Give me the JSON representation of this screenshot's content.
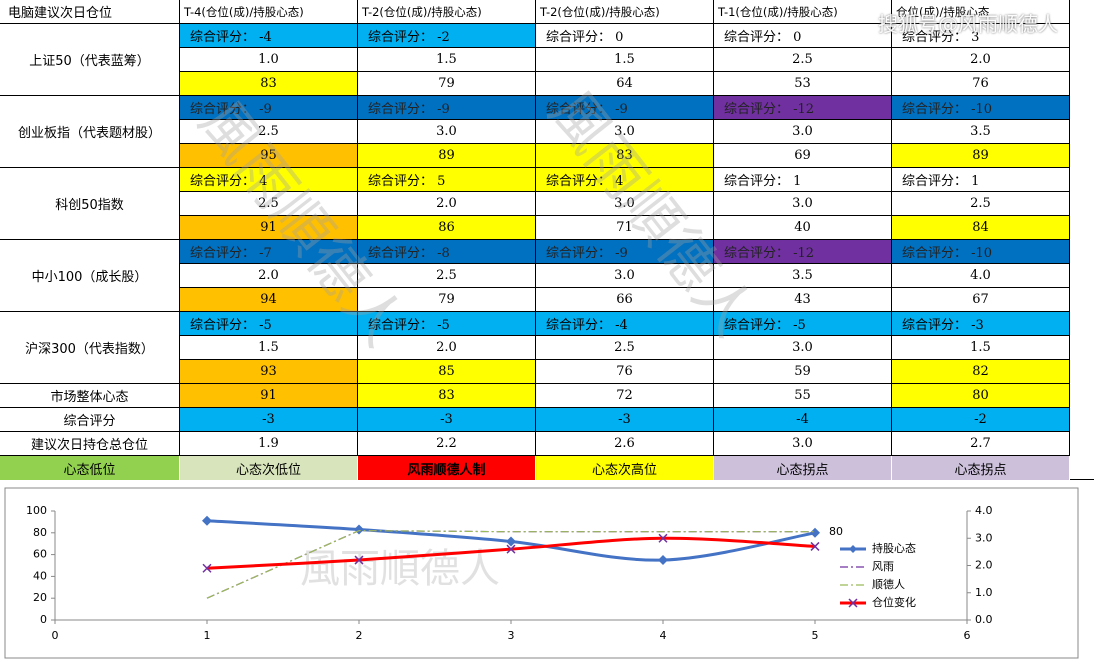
{
  "table": {
    "header": [
      "电脑建议次日仓位",
      "T-4(仓位(成)/持股心态)",
      "T-2(仓位(成)/持股心态)",
      "T-2(仓位(成)/持股心态)",
      "T-1(仓位(成)/持股心态)",
      "仓位(成)/持股心态"
    ],
    "groups": [
      {
        "label": "上证50（代表蓝筹）",
        "scores": [
          "综合评分： -4",
          "综合评分： -2",
          "综合评分： 0",
          "综合评分： 0",
          "综合评分： 3"
        ],
        "positions": [
          "1.0",
          "1.5",
          "1.5",
          "2.5",
          "2.0"
        ],
        "moods": [
          83,
          79,
          64,
          53,
          76
        ]
      },
      {
        "label": "创业板指（代表题材股）",
        "scores": [
          "综合评分： -9",
          "综合评分： -9",
          "综合评分： -9",
          "综合评分： -12",
          "综合评分： -10"
        ],
        "positions": [
          "2.5",
          "3.0",
          "3.0",
          "3.0",
          "3.5"
        ],
        "moods": [
          95,
          89,
          83,
          69,
          89
        ]
      },
      {
        "label": "科创50指数",
        "scores": [
          "综合评分： 4",
          "综合评分： 5",
          "综合评分： 4",
          "综合评分： 1",
          "综合评分： 1"
        ],
        "positions": [
          "2.5",
          "2.0",
          "3.0",
          "3.0",
          "2.5"
        ],
        "moods": [
          91,
          86,
          71,
          40,
          84
        ]
      },
      {
        "label": "中小100（成长股）",
        "scores": [
          "综合评分： -7",
          "综合评分： -8",
          "综合评分： -9",
          "综合评分： -12",
          "综合评分： -10"
        ],
        "positions": [
          "2.0",
          "2.5",
          "3.0",
          "3.5",
          "4.0"
        ],
        "moods": [
          94,
          79,
          66,
          43,
          67
        ]
      },
      {
        "label": "沪深300（代表指数）",
        "scores": [
          "综合评分： -5",
          "综合评分： -5",
          "综合评分： -4",
          "综合评分： -5",
          "综合评分： -3"
        ],
        "positions": [
          "1.5",
          "2.0",
          "2.5",
          "3.0",
          "1.5"
        ],
        "moods": [
          93,
          85,
          76,
          59,
          82
        ]
      }
    ],
    "rows": [
      {
        "label": "市场整体心态",
        "cells": [
          91,
          83,
          72,
          55,
          80
        ]
      },
      {
        "label": "综合评分",
        "cells": [
          -3,
          -3,
          -3,
          -4,
          -2
        ]
      },
      {
        "label": "建议次日持仓总仓位",
        "cells": [
          "1.9",
          "2.2",
          "2.6",
          "3.0",
          "2.7"
        ]
      }
    ],
    "legend": [
      "心态低位",
      "心态次低位",
      "风雨顺德人制",
      "心态次高位",
      "心态拐点",
      "心态拐点"
    ],
    "watermark": "風雨順德人",
    "source": "搜狐号@风雨顺德人"
  },
  "chart_data": {
    "type": "line",
    "x": [
      1,
      2,
      3,
      4,
      5
    ],
    "xlim": [
      0,
      6
    ],
    "xticks": [
      0,
      1,
      2,
      3,
      4,
      5,
      6
    ],
    "ylim": [
      0,
      100
    ],
    "yticks": [
      0,
      20,
      40,
      60,
      80,
      100
    ],
    "y2lim": [
      0,
      4
    ],
    "y2ticks": [
      {
        "value": 0,
        "label": "0.0"
      },
      {
        "value": 1,
        "label": "1.0"
      },
      {
        "value": 2,
        "label": "2.0"
      },
      {
        "value": 3,
        "label": "3.0"
      },
      {
        "value": 4,
        "label": "4.0"
      }
    ],
    "grid": false,
    "legend": "right",
    "watermark": "風雨順德人",
    "series": [
      {
        "name": "持股心态",
        "color": "#4472c4",
        "values": [
          91,
          83,
          72,
          55,
          80
        ],
        "marker": "diamond",
        "smooth": true
      },
      {
        "name": "风雨",
        "color": "#7030a0",
        "values": [
          20,
          82,
          81,
          81,
          81
        ],
        "dash": "dashdot"
      },
      {
        "name": "顺德人",
        "color": "#9bbb59",
        "values": [
          20,
          82,
          81,
          81,
          81
        ],
        "dash": "dashdot"
      },
      {
        "name": "仓位变化",
        "color": "#ff0000",
        "values": [
          1.9,
          2.2,
          2.6,
          3.0,
          2.7
        ],
        "axis": "y2",
        "marker": "x",
        "smooth": true
      }
    ]
  }
}
